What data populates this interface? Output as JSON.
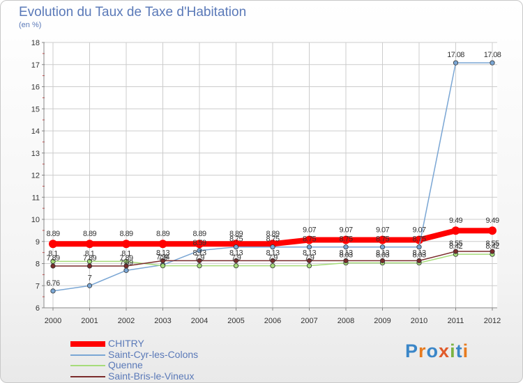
{
  "title": "Evolution du Taux de Taxe d'Habitation",
  "subtitle": "(en %)",
  "logo": {
    "letters": [
      "P",
      "r",
      "o",
      "x",
      "i",
      "t",
      "i"
    ],
    "colors": [
      "#3a86c8",
      "#e77b1f",
      "#3a86c8",
      "#e05a2a",
      "#7cb342",
      "#3a86c8",
      "#e77b1f"
    ]
  },
  "chart_data": {
    "type": "line",
    "x": [
      "2000",
      "2001",
      "2002",
      "2003",
      "2004",
      "2005",
      "2006",
      "2007",
      "2008",
      "2009",
      "2010",
      "2011",
      "2012"
    ],
    "ylim": [
      6,
      18
    ],
    "yticks": [
      6,
      7,
      8,
      9,
      10,
      11,
      12,
      13,
      14,
      15,
      16,
      17,
      18
    ],
    "grid": true,
    "legend_position": "bottom-left",
    "series": [
      {
        "name": "CHITRY",
        "color": "#ff0000",
        "values": [
          8.89,
          8.89,
          8.89,
          8.89,
          8.89,
          8.89,
          8.89,
          9.07,
          9.07,
          9.07,
          9.07,
          9.49,
          9.49
        ],
        "labels": [
          "8.89",
          "8.89",
          "8.89",
          "8.89",
          "8.89",
          "8.89",
          "8.89",
          "9.07",
          "9.07",
          "9.07",
          "9.07",
          "9.49",
          "9.49"
        ]
      },
      {
        "name": "Saint-Cyr-les-Colons",
        "color": "#7aa6d4",
        "values": [
          6.76,
          7,
          7.69,
          7.94,
          8.59,
          8.75,
          8.75,
          8.75,
          8.75,
          8.75,
          8.75,
          17.08,
          17.08
        ],
        "labels": [
          "6.76",
          "7",
          "7.69",
          "7.94",
          "8.59",
          "8.75",
          "8.75",
          "8.75",
          "8.75",
          "8.75",
          "8.75",
          "17.08",
          "17.08"
        ]
      },
      {
        "name": "Quenne",
        "color": "#a6dc7a",
        "values": [
          8.1,
          8.1,
          8.1,
          7.9,
          7.9,
          7.9,
          7.9,
          7.9,
          8.03,
          8.03,
          8.03,
          8.42,
          8.42
        ],
        "labels": [
          "8.1",
          "8.1",
          "8.1",
          "7.9",
          "7.9",
          "7.9",
          "7.9",
          "7.9",
          "8.03",
          "8.03",
          "8.03",
          "8.42",
          "8.42"
        ]
      },
      {
        "name": "Saint-Bris-le-Vineux",
        "color": "#7a2b2b",
        "values": [
          7.89,
          7.89,
          7.89,
          8.13,
          8.13,
          8.13,
          8.13,
          8.13,
          8.13,
          8.13,
          8.13,
          8.55,
          8.55
        ],
        "labels": [
          "7.89",
          "7.89",
          "7.89",
          "8.13",
          "8.13",
          "8.13",
          "8.13",
          "8.13",
          "8.13",
          "8.13",
          "8.13",
          "8.55",
          "8.55"
        ]
      }
    ]
  }
}
